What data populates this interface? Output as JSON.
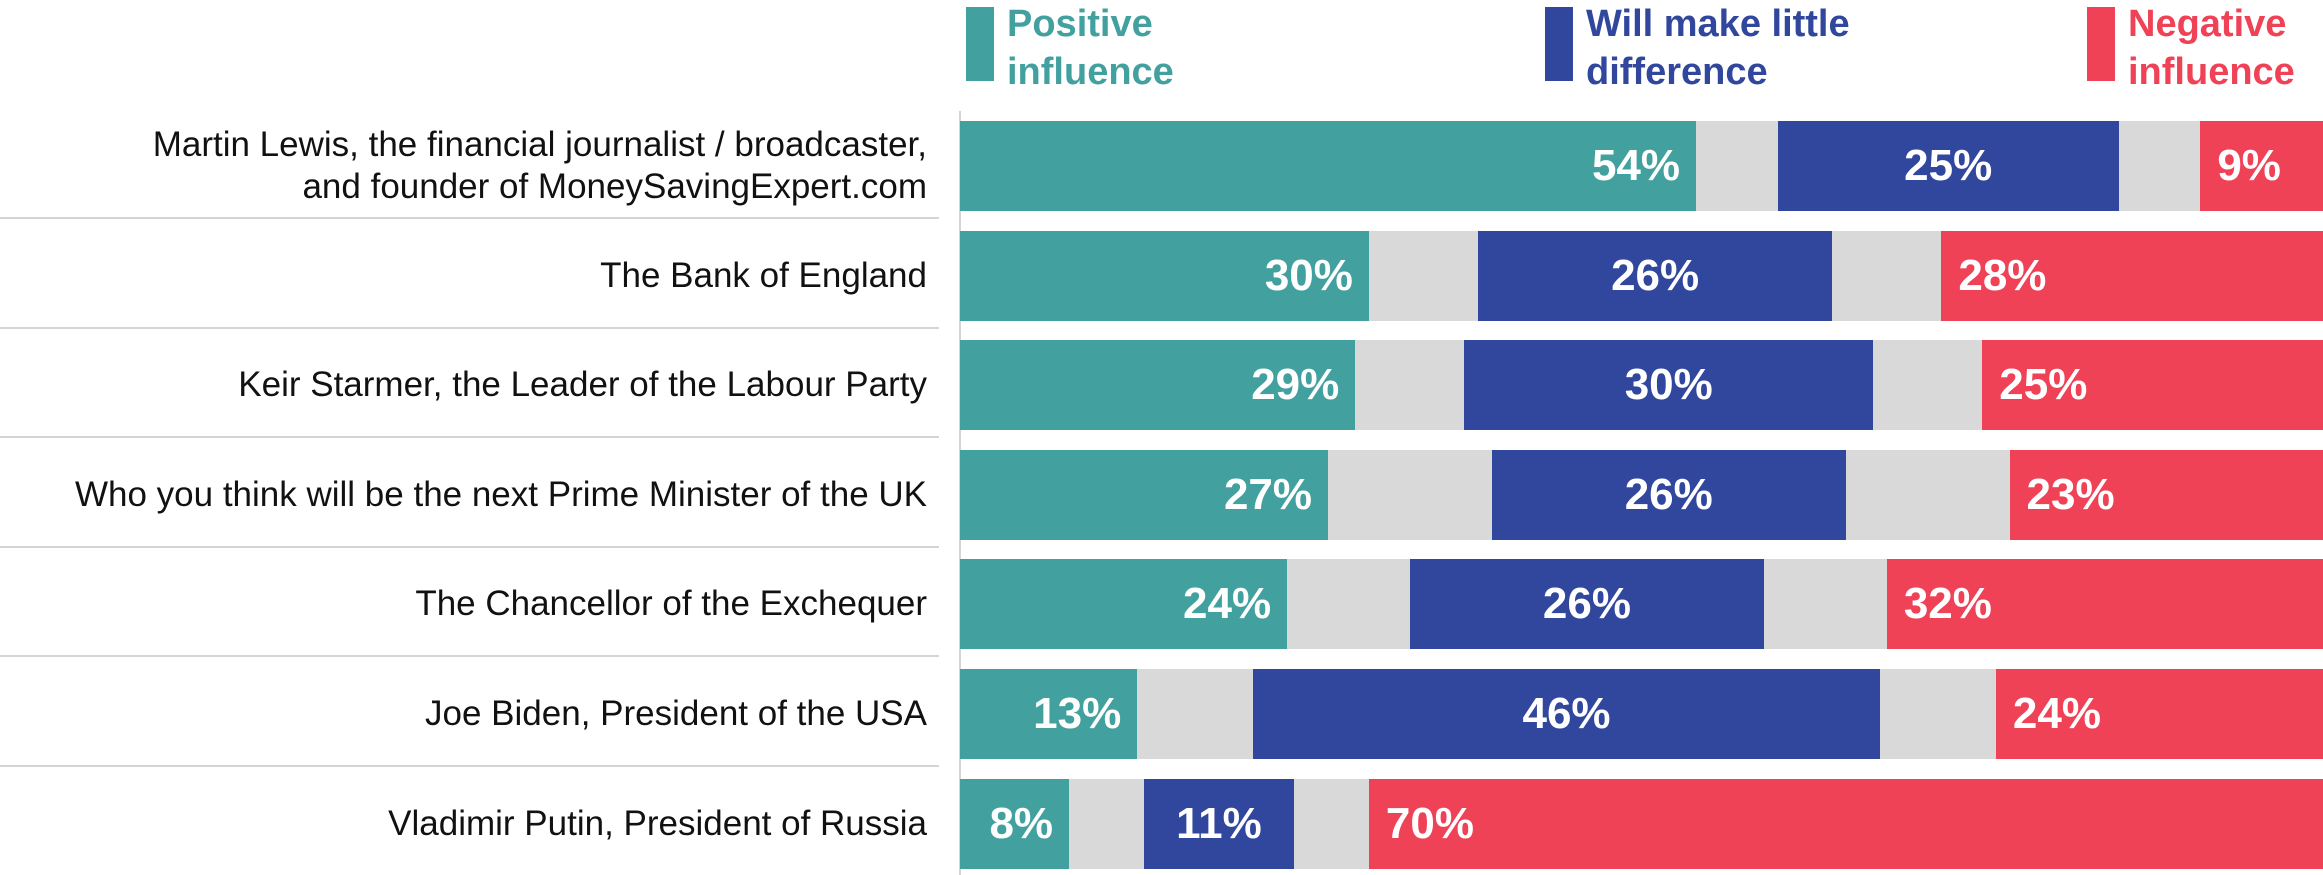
{
  "chart_data": {
    "type": "bar",
    "orientation": "horizontal",
    "stacked": true,
    "categories": [
      "Martin Lewis, the financial journalist / broadcaster,\nand founder of MoneySavingExpert.com",
      "The Bank of England",
      "Keir Starmer, the Leader of the Labour Party",
      "Who you think will be the next Prime Minister of the UK",
      "The Chancellor of the Exchequer",
      "Joe Biden, President of the USA",
      "Vladimir Putin, President of Russia"
    ],
    "series": [
      {
        "name": "Positive\ninfluence",
        "color": "#42a19f",
        "values": [
          54,
          30,
          29,
          27,
          24,
          13,
          8
        ],
        "value_labels": [
          "54%",
          "30%",
          "29%",
          "27%",
          "24%",
          "13%",
          "8%"
        ]
      },
      {
        "name": "Will make little\ndifference",
        "color": "#31479d",
        "values": [
          25,
          26,
          30,
          26,
          26,
          46,
          11
        ],
        "value_labels": [
          "25%",
          "26%",
          "30%",
          "26%",
          "26%",
          "46%",
          "11%"
        ]
      },
      {
        "name": "Negative\ninfluence",
        "color": "#f04257",
        "values": [
          9,
          28,
          25,
          23,
          32,
          24,
          70
        ],
        "value_labels": [
          "9%",
          "28%",
          "25%",
          "23%",
          "32%",
          "24%",
          "70%"
        ]
      }
    ],
    "xlim": [
      0,
      100
    ]
  }
}
